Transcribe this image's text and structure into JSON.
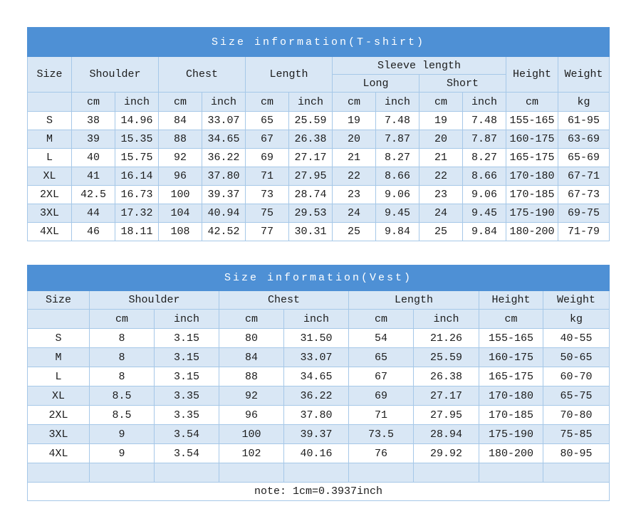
{
  "colors": {
    "title_bar_bg": "#4e90d5",
    "title_text": "#ffffff",
    "shaded_cell_bg": "#d9e7f5",
    "cell_border": "#a6c8e8",
    "body_text": "#1b1b1b"
  },
  "tshirt_table": {
    "title": "Size information(T-shirt)",
    "headers": {
      "size": "Size",
      "shoulder": "Shoulder",
      "chest": "Chest",
      "length": "Length",
      "sleeve_length": "Sleeve length",
      "sleeve_long": "Long",
      "sleeve_short": "Short",
      "height": "Height",
      "weight": "Weight"
    },
    "units": [
      "",
      "cm",
      "inch",
      "cm",
      "inch",
      "cm",
      "inch",
      "cm",
      "inch",
      "cm",
      "inch",
      "cm",
      "kg"
    ],
    "rows": [
      [
        "S",
        "38",
        "14.96",
        "84",
        "33.07",
        "65",
        "25.59",
        "19",
        "7.48",
        "19",
        "7.48",
        "155-165",
        "61-95"
      ],
      [
        "M",
        "39",
        "15.35",
        "88",
        "34.65",
        "67",
        "26.38",
        "20",
        "7.87",
        "20",
        "7.87",
        "160-175",
        "63-69"
      ],
      [
        "L",
        "40",
        "15.75",
        "92",
        "36.22",
        "69",
        "27.17",
        "21",
        "8.27",
        "21",
        "8.27",
        "165-175",
        "65-69"
      ],
      [
        "XL",
        "41",
        "16.14",
        "96",
        "37.80",
        "71",
        "27.95",
        "22",
        "8.66",
        "22",
        "8.66",
        "170-180",
        "67-71"
      ],
      [
        "2XL",
        "42.5",
        "16.73",
        "100",
        "39.37",
        "73",
        "28.74",
        "23",
        "9.06",
        "23",
        "9.06",
        "170-185",
        "67-73"
      ],
      [
        "3XL",
        "44",
        "17.32",
        "104",
        "40.94",
        "75",
        "29.53",
        "24",
        "9.45",
        "24",
        "9.45",
        "175-190",
        "69-75"
      ],
      [
        "4XL",
        "46",
        "18.11",
        "108",
        "42.52",
        "77",
        "30.31",
        "25",
        "9.84",
        "25",
        "9.84",
        "180-200",
        "71-79"
      ]
    ]
  },
  "vest_table": {
    "title": "Size information(Vest)",
    "headers": {
      "size": "Size",
      "shoulder": "Shoulder",
      "chest": "Chest",
      "length": "Length",
      "height": "Height",
      "weight": "Weight"
    },
    "units": [
      "",
      "cm",
      "inch",
      "cm",
      "inch",
      "cm",
      "inch",
      "cm",
      "kg"
    ],
    "rows": [
      [
        "S",
        "8",
        "3.15",
        "80",
        "31.50",
        "54",
        "21.26",
        "155-165",
        "40-55"
      ],
      [
        "M",
        "8",
        "3.15",
        "84",
        "33.07",
        "65",
        "25.59",
        "160-175",
        "50-65"
      ],
      [
        "L",
        "8",
        "3.15",
        "88",
        "34.65",
        "67",
        "26.38",
        "165-175",
        "60-70"
      ],
      [
        "XL",
        "8.5",
        "3.35",
        "92",
        "36.22",
        "69",
        "27.17",
        "170-180",
        "65-75"
      ],
      [
        "2XL",
        "8.5",
        "3.35",
        "96",
        "37.80",
        "71",
        "27.95",
        "170-185",
        "70-80"
      ],
      [
        "3XL",
        "9",
        "3.54",
        "100",
        "39.37",
        "73.5",
        "28.94",
        "175-190",
        "75-85"
      ],
      [
        "4XL",
        "9",
        "3.54",
        "102",
        "40.16",
        "76",
        "29.92",
        "180-200",
        "80-95"
      ],
      [
        "",
        "",
        "",
        "",
        "",
        "",
        "",
        "",
        ""
      ]
    ],
    "note": "note: 1cm=0.3937inch"
  }
}
